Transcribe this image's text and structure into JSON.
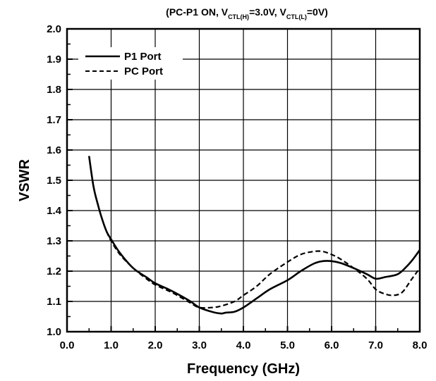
{
  "chart_data": {
    "type": "line",
    "title": {
      "prefix": "(PC-P1 ON, V",
      "sub1": "CTL(H)",
      "middle": "=3.0V, V",
      "sub2": "CTL(L)",
      "suffix": "=0V)"
    },
    "xlabel": "Frequency  (GHz)",
    "ylabel": "VSWR",
    "xlim": [
      0.0,
      8.0
    ],
    "ylim": [
      1.0,
      2.0
    ],
    "x_ticks": [
      0.0,
      1.0,
      2.0,
      3.0,
      4.0,
      5.0,
      6.0,
      7.0,
      8.0
    ],
    "x_tick_labels": [
      "0.0",
      "1.0",
      "2.0",
      "3.0",
      "4.0",
      "5.0",
      "6.0",
      "7.0",
      "8.0"
    ],
    "y_ticks": [
      1.0,
      1.1,
      1.2,
      1.3,
      1.4,
      1.5,
      1.6,
      1.7,
      1.8,
      1.9,
      2.0
    ],
    "y_tick_labels": [
      "1.0",
      "1.1",
      "1.2",
      "1.3",
      "1.4",
      "1.5",
      "1.6",
      "1.7",
      "1.8",
      "1.9",
      "2.0"
    ],
    "grid": true,
    "legend_position": "top-left",
    "series": [
      {
        "name": "P1 Port",
        "style": "solid",
        "color": "#000000",
        "x": [
          0.5,
          0.6,
          0.7,
          0.8,
          0.9,
          1.0,
          1.2,
          1.5,
          1.8,
          2.0,
          2.3,
          2.5,
          2.8,
          3.0,
          3.3,
          3.5,
          3.6,
          3.8,
          4.0,
          4.3,
          4.6,
          5.0,
          5.3,
          5.6,
          5.8,
          6.0,
          6.2,
          6.5,
          6.8,
          7.0,
          7.2,
          7.5,
          7.7,
          7.85,
          8.0
        ],
        "y": [
          1.58,
          1.48,
          1.42,
          1.37,
          1.33,
          1.305,
          1.26,
          1.21,
          1.18,
          1.16,
          1.14,
          1.125,
          1.1,
          1.08,
          1.065,
          1.06,
          1.063,
          1.066,
          1.08,
          1.11,
          1.14,
          1.17,
          1.2,
          1.225,
          1.233,
          1.233,
          1.227,
          1.21,
          1.19,
          1.175,
          1.18,
          1.19,
          1.215,
          1.24,
          1.27
        ]
      },
      {
        "name": "PC Port",
        "style": "dashed",
        "color": "#000000",
        "x": [
          0.5,
          0.6,
          0.7,
          0.8,
          0.9,
          1.0,
          1.2,
          1.5,
          1.8,
          2.0,
          2.3,
          2.5,
          2.8,
          3.0,
          3.3,
          3.5,
          3.8,
          4.0,
          4.3,
          4.6,
          5.0,
          5.3,
          5.6,
          5.8,
          6.0,
          6.2,
          6.5,
          6.8,
          7.0,
          7.2,
          7.4,
          7.6,
          7.8,
          8.0
        ],
        "y": [
          1.58,
          1.48,
          1.42,
          1.37,
          1.33,
          1.3,
          1.255,
          1.21,
          1.175,
          1.155,
          1.135,
          1.12,
          1.095,
          1.08,
          1.08,
          1.085,
          1.1,
          1.12,
          1.15,
          1.19,
          1.23,
          1.255,
          1.265,
          1.265,
          1.255,
          1.24,
          1.21,
          1.175,
          1.14,
          1.125,
          1.12,
          1.13,
          1.17,
          1.21
        ]
      }
    ]
  }
}
